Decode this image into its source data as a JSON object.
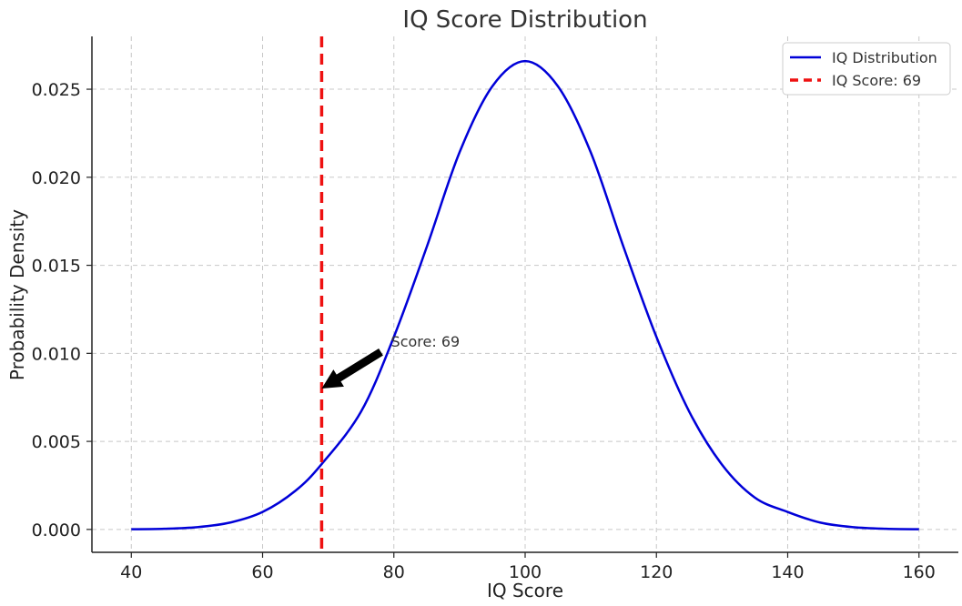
{
  "chart_data": {
    "type": "line",
    "title": "IQ Score Distribution",
    "xlabel": "IQ Score",
    "ylabel": "Probability Density",
    "xlim": [
      34,
      166
    ],
    "ylim": [
      -0.0013,
      0.028
    ],
    "xticks": [
      40,
      60,
      80,
      100,
      120,
      140,
      160
    ],
    "xtick_labels": [
      "40",
      "60",
      "80",
      "100",
      "120",
      "140",
      "160"
    ],
    "yticks": [
      0.0,
      0.005,
      0.01,
      0.015,
      0.02,
      0.025
    ],
    "ytick_labels": [
      "0.000",
      "0.005",
      "0.010",
      "0.015",
      "0.020",
      "0.025"
    ],
    "grid": true,
    "legend_position": "top-right",
    "series": [
      {
        "name": "IQ Distribution",
        "color": "#0000d8",
        "style": "solid",
        "x": [
          40,
          45,
          50,
          55,
          60,
          65,
          69,
          75,
          80,
          85,
          90,
          95,
          100,
          105,
          110,
          115,
          120,
          125,
          130,
          135,
          140,
          145,
          150,
          155,
          160
        ],
        "y": [
          8.9e-06,
          3.68e-05,
          0.0001283,
          0.0003847,
          0.000991,
          0.0021931,
          0.0037104,
          0.0066891,
          0.010934,
          0.01603,
          0.0214101,
          0.0251629,
          0.0265962,
          0.0251629,
          0.0214101,
          0.01603,
          0.010934,
          0.0066891,
          0.0036736,
          0.0018075,
          0.000991,
          0.0003847,
          0.0001283,
          3.68e-05,
          8.9e-06
        ]
      },
      {
        "name": "IQ Score: 69",
        "color": "#ee1111",
        "style": "dashed",
        "type": "vline",
        "x_value": 69
      }
    ],
    "annotations": [
      {
        "text": "Score: 69",
        "xy": [
          69,
          0.008
        ],
        "xytext": [
          79,
          0.0107
        ],
        "arrow_color": "#000000"
      }
    ]
  }
}
